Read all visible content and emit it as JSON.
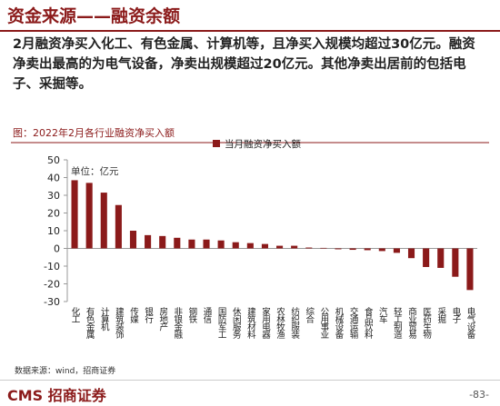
{
  "header": {
    "title": "资金来源——融资余额"
  },
  "paragraph": "2月融资净买入化工、有色金属、计算机等，且净买入规模均超过30亿元。融资净卖出最高的为电气设备，净卖出规模超过20亿元。其他净卖出居前的包括电子、采掘等。",
  "chart_data": {
    "type": "bar",
    "title": "图：2022年2月各行业融资净买入额",
    "annotation": "单位：亿元",
    "categories": [
      "化工",
      "有色金属",
      "计算机",
      "建筑装饰",
      "传媒",
      "银行",
      "房地产",
      "非银金融",
      "钢铁",
      "通信",
      "国防军工",
      "休闲服务",
      "建筑材料",
      "家用电器",
      "农林牧渔",
      "纺织服装",
      "综合",
      "公用事业",
      "机械设备",
      "交通运输",
      "食品饮料",
      "汽车",
      "轻工制造",
      "商业贸易",
      "医药生物",
      "采掘",
      "电子",
      "电气设备"
    ],
    "series": [
      {
        "name": "当月融资净买入额",
        "color": "#8b1a1a",
        "values": [
          38.5,
          37,
          31.5,
          24.5,
          10,
          7.5,
          7,
          6,
          5,
          5,
          4.5,
          3.5,
          3,
          2.5,
          1.5,
          1.5,
          0.5,
          0.3,
          -0.5,
          -0.8,
          -1,
          -1.5,
          -2.5,
          -5.5,
          -10.5,
          -11,
          -16,
          -23.5
        ]
      }
    ],
    "ylim": [
      -30,
      50
    ],
    "yticks": [
      -30,
      -20,
      -10,
      0,
      10,
      20,
      30,
      40,
      50
    ],
    "legend": "top"
  },
  "footer": {
    "source": "数据来源：wind，招商证券",
    "logo": "CMS 招商证券",
    "page": "-83-"
  }
}
